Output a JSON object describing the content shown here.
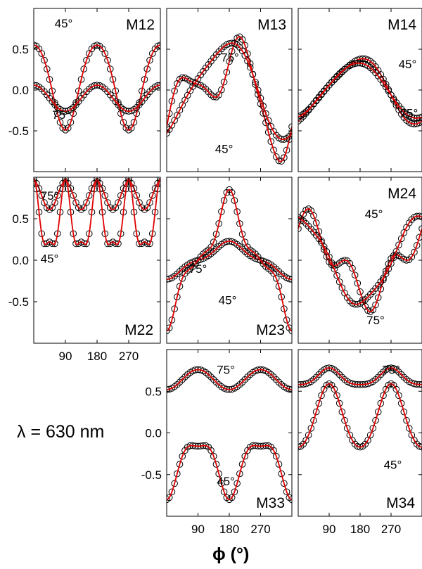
{
  "figure": {
    "wavelength_note": "λ = 630 nm",
    "x_axis_title": "ϕ (°)",
    "marker_style": "open black circles",
    "line_color": "#e00000",
    "marker_color": "#000000"
  },
  "chart_data": [
    {
      "id": "M12",
      "type": "line",
      "title": "M12",
      "xlim": [
        0,
        360
      ],
      "ylim": [
        -1,
        1
      ],
      "yticks": [
        -0.5,
        0.0,
        0.5
      ],
      "ytick_labels": [
        "-0.5",
        "0.0",
        "0.5"
      ],
      "xticks": [
        90,
        180,
        270
      ],
      "xtick_labels": [],
      "series": [
        {
          "name": "45°",
          "a0": 0.08,
          "terms": [
            [
              2,
              0.0,
              0.52
            ],
            [
              4,
              0.0,
              -0.05
            ]
          ]
        },
        {
          "name": "75°",
          "a0": -0.1,
          "terms": [
            [
              2,
              0.0,
              0.16
            ]
          ]
        }
      ],
      "annotations": [
        {
          "text": "45°",
          "x": 85,
          "y": 0.82
        },
        {
          "text": "75°",
          "x": 78,
          "y": -0.3
        }
      ]
    },
    {
      "id": "M13",
      "type": "line",
      "title": "M13",
      "xlim": [
        0,
        360
      ],
      "ylim": [
        -1,
        1
      ],
      "yticks": [
        -0.5,
        0.0,
        0.5
      ],
      "ytick_labels": [],
      "xticks": [
        90,
        180,
        270
      ],
      "xtick_labels": [],
      "series": [
        {
          "name": "45°",
          "a0": -0.05,
          "terms": [
            [
              2,
              0.4,
              0.0
            ],
            [
              1,
              0.12,
              -0.4
            ],
            [
              4,
              0.08,
              0.0
            ]
          ]
        },
        {
          "name": "75°",
          "a0": 0.02,
          "terms": [
            [
              1,
              0.12,
              -0.55
            ],
            [
              2,
              0.1,
              0.0
            ]
          ]
        }
      ],
      "annotations": [
        {
          "text": "75°",
          "x": 182,
          "y": 0.4
        },
        {
          "text": "45°",
          "x": 165,
          "y": -0.72
        }
      ]
    },
    {
      "id": "M14",
      "type": "line",
      "title": "M14",
      "xlim": [
        0,
        360
      ],
      "ylim": [
        -1,
        1
      ],
      "yticks": [
        -0.5,
        0.0,
        0.5
      ],
      "ytick_labels": [],
      "xticks": [
        90,
        180,
        270
      ],
      "xtick_labels": [],
      "series": [
        {
          "name": "45°",
          "a0": 0.0,
          "terms": [
            [
              1,
              0.06,
              -0.38
            ],
            [
              2,
              0.06,
              0.0
            ]
          ]
        },
        {
          "name": "75°",
          "a0": 0.0,
          "terms": [
            [
              1,
              0.06,
              -0.33
            ],
            [
              2,
              0.02,
              0.0
            ]
          ]
        }
      ],
      "annotations": [
        {
          "text": "45°",
          "x": 318,
          "y": 0.32
        },
        {
          "text": "75°",
          "x": 322,
          "y": -0.28
        }
      ]
    },
    {
      "id": "M22",
      "type": "line",
      "title": "M22",
      "xlim": [
        0,
        360
      ],
      "ylim": [
        -1,
        1
      ],
      "yticks": [
        -0.5,
        0.0,
        0.5
      ],
      "ytick_labels": [
        "-0.5",
        "0.0",
        "0.5"
      ],
      "xticks": [
        90,
        180,
        270
      ],
      "xtick_labels": [
        "90",
        "180",
        "270"
      ],
      "series": [
        {
          "name": "75°",
          "a0": 0.78,
          "terms": [
            [
              2,
              0.0,
              0.0
            ],
            [
              4,
              0.0,
              0.17
            ]
          ]
        },
        {
          "name": "45°",
          "a0": 0.46,
          "terms": [
            [
              2,
              0.0,
              0.0
            ],
            [
              4,
              0.0,
              0.38
            ],
            [
              8,
              0.0,
              0.14
            ]
          ]
        }
      ],
      "annotations": [
        {
          "text": "75°",
          "x": 45,
          "y": 0.78
        },
        {
          "text": "45°",
          "x": 45,
          "y": 0.02
        }
      ]
    },
    {
      "id": "M23",
      "type": "line",
      "title": "M23",
      "xlim": [
        0,
        360
      ],
      "ylim": [
        -1,
        1
      ],
      "yticks": [
        -0.5,
        0.0,
        0.5
      ],
      "ytick_labels": [],
      "xticks": [
        90,
        180,
        270
      ],
      "xtick_labels": [],
      "series": [
        {
          "name": "75°",
          "a0": 0.0,
          "terms": [
            [
              1,
              0.0,
              -0.19
            ],
            [
              3,
              0.0,
              -0.04
            ]
          ]
        },
        {
          "name": "45°",
          "a0": 0.0,
          "terms": [
            [
              1,
              0.0,
              -0.58
            ],
            [
              3,
              0.0,
              -0.2
            ],
            [
              5,
              0.0,
              -0.07
            ]
          ]
        }
      ],
      "annotations": [
        {
          "text": "75°",
          "x": 90,
          "y": -0.1
        },
        {
          "text": "45°",
          "x": 175,
          "y": -0.48
        }
      ]
    },
    {
      "id": "M24",
      "type": "line",
      "title": "M24",
      "xlim": [
        0,
        360
      ],
      "ylim": [
        -1,
        1
      ],
      "yticks": [
        -0.5,
        0.0,
        0.5
      ],
      "ytick_labels": [],
      "xticks": [
        90,
        180,
        270
      ],
      "xtick_labels": [],
      "series": [
        {
          "name": "45°",
          "a0": 0.0,
          "terms": [
            [
              1,
              0.18,
              0.38
            ],
            [
              3,
              0.2,
              0.0
            ]
          ]
        },
        {
          "name": "75°",
          "a0": 0.0,
          "terms": [
            [
              1,
              0.0,
              0.52
            ],
            [
              3,
              -0.04,
              0.0
            ]
          ]
        }
      ],
      "annotations": [
        {
          "text": "45°",
          "x": 220,
          "y": 0.56
        },
        {
          "text": "75°",
          "x": 225,
          "y": -0.72
        }
      ]
    },
    {
      "id": "M33",
      "type": "line",
      "title": "M33",
      "xlim": [
        0,
        360
      ],
      "ylim": [
        -1,
        1
      ],
      "yticks": [
        -0.5,
        0.0,
        0.5
      ],
      "ytick_labels": [
        "-0.5",
        "0.0",
        "0.5"
      ],
      "xticks": [
        90,
        180,
        270
      ],
      "xtick_labels": [
        "90",
        "180",
        "270"
      ],
      "series": [
        {
          "name": "75°",
          "a0": 0.64,
          "terms": [
            [
              2,
              0.0,
              -0.12
            ]
          ]
        },
        {
          "name": "45°",
          "a0": -0.38,
          "terms": [
            [
              2,
              0.0,
              -0.32
            ],
            [
              4,
              0.0,
              -0.1
            ]
          ]
        }
      ],
      "annotations": [
        {
          "text": "75°",
          "x": 170,
          "y": 0.76
        },
        {
          "text": "45°",
          "x": 170,
          "y": -0.58
        }
      ]
    },
    {
      "id": "M34",
      "type": "line",
      "title": "M34",
      "xlim": [
        0,
        360
      ],
      "ylim": [
        -1,
        1
      ],
      "yticks": [
        -0.5,
        0.0,
        0.5
      ],
      "ytick_labels": [],
      "xticks": [
        90,
        180,
        270
      ],
      "xtick_labels": [
        "90",
        "180",
        "270"
      ],
      "series": [
        {
          "name": "75°",
          "a0": 0.66,
          "terms": [
            [
              2,
              0.0,
              -0.1
            ],
            [
              4,
              0.0,
              0.02
            ]
          ]
        },
        {
          "name": "45°",
          "a0": 0.18,
          "terms": [
            [
              2,
              0.0,
              -0.38
            ],
            [
              4,
              0.0,
              0.03
            ]
          ]
        }
      ],
      "annotations": [
        {
          "text": "75°",
          "x": 270,
          "y": 0.76
        },
        {
          "text": "45°",
          "x": 275,
          "y": -0.38
        }
      ]
    }
  ]
}
